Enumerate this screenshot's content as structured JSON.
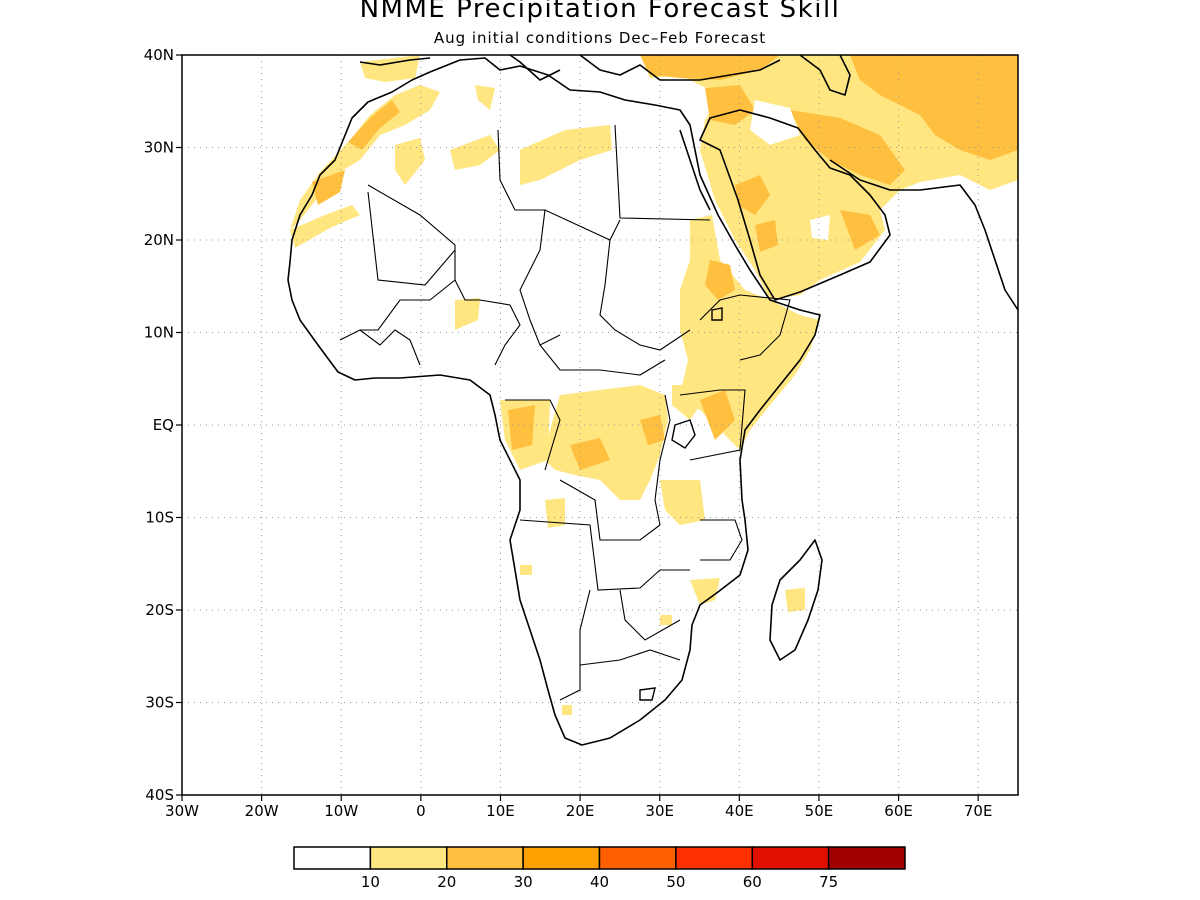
{
  "title": "NMME Precipitation Forecast Skill",
  "subtitle": "Aug initial conditions  Dec–Feb Forecast",
  "map": {
    "lon_range": [
      -30,
      75
    ],
    "lat_range": [
      -40,
      40
    ],
    "lat_labels": [
      "40N",
      "30N",
      "20N",
      "10N",
      "EQ",
      "10S",
      "20S",
      "30S",
      "40S"
    ],
    "lon_labels": [
      "30W",
      "20W",
      "10W",
      "0",
      "10E",
      "20E",
      "30E",
      "40E",
      "50E",
      "60E",
      "70E"
    ],
    "gridlines": "dotted"
  },
  "legend": {
    "colors": [
      "#ffffff",
      "#ffe680",
      "#ffc040",
      "#ffa000",
      "#ff6000",
      "#ff3000",
      "#e01000",
      "#a00000"
    ],
    "labels": [
      "10",
      "20",
      "30",
      "40",
      "50",
      "60",
      "75"
    ]
  }
}
